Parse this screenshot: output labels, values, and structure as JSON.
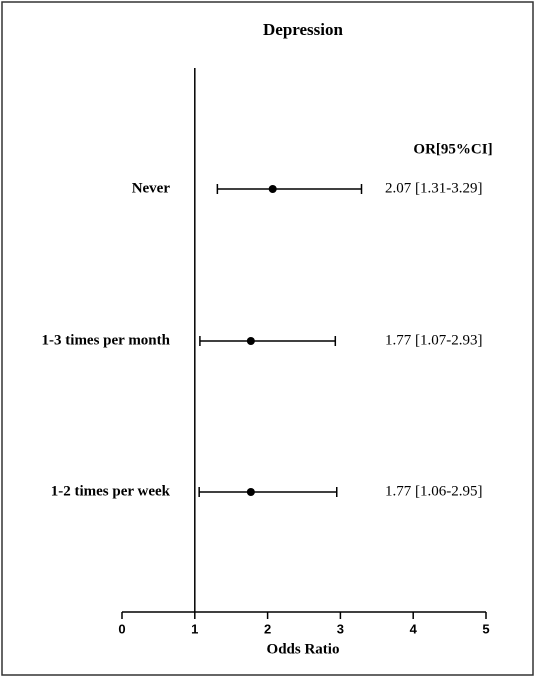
{
  "chart_data": {
    "type": "forest",
    "title": "Depression",
    "x_label": "Odds Ratio",
    "column_header": "OR[95%CI]",
    "categories": [
      "Never",
      "1-3 times per month",
      "1-2 times per week"
    ],
    "values": [
      2.07,
      1.77,
      1.77
    ],
    "ci_low": [
      1.31,
      1.07,
      1.06
    ],
    "ci_high": [
      3.29,
      2.93,
      2.95
    ],
    "value_labels": [
      "2.07 [1.31-3.29]",
      "1.77 [1.07-2.93]",
      "1.77 [1.06-2.95]"
    ],
    "color": "#000000",
    "reference_line": 1,
    "xlim": [
      0,
      5
    ],
    "xticks": [
      0,
      1,
      2,
      3,
      4,
      5
    ]
  }
}
